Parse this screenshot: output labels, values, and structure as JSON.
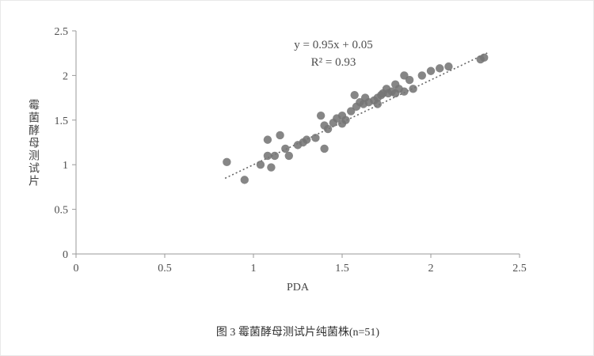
{
  "caption": "图 3 霉菌酵母测试片纯菌株(n=51)",
  "chart_data": {
    "type": "scatter",
    "title": "",
    "xlabel": "PDA",
    "ylabel": "霉菌酵母测试片",
    "xlim": [
      0,
      2.5
    ],
    "ylim": [
      0,
      2.5
    ],
    "grid": false,
    "legend": "none",
    "x_ticks": {
      "values": [
        0,
        0.5,
        1,
        1.5,
        2,
        2.5
      ],
      "labels": [
        "0",
        "0.5",
        "1",
        "1.5",
        "2",
        "2.5"
      ]
    },
    "y_ticks": {
      "values": [
        0,
        0.5,
        1,
        1.5,
        2,
        2.5
      ],
      "labels": [
        "0",
        "0.5",
        "1",
        "1.5",
        "2",
        "2.5"
      ]
    },
    "equation": "y = 0.95x + 0.05",
    "r_squared": "R² = 0.93",
    "n": 51,
    "point_color": "#757575",
    "line_color": "#666666",
    "trendline": {
      "slope": 0.95,
      "intercept": 0.05,
      "x_start": 0.84,
      "x_end": 2.33,
      "style": "dotted"
    },
    "points": [
      [
        0.85,
        1.03
      ],
      [
        0.95,
        0.83
      ],
      [
        1.04,
        1.0
      ],
      [
        1.08,
        1.1
      ],
      [
        1.08,
        1.28
      ],
      [
        1.1,
        0.97
      ],
      [
        1.12,
        1.1
      ],
      [
        1.15,
        1.33
      ],
      [
        1.18,
        1.18
      ],
      [
        1.2,
        1.1
      ],
      [
        1.25,
        1.22
      ],
      [
        1.28,
        1.25
      ],
      [
        1.3,
        1.28
      ],
      [
        1.35,
        1.3
      ],
      [
        1.38,
        1.55
      ],
      [
        1.4,
        1.44
      ],
      [
        1.4,
        1.18
      ],
      [
        1.42,
        1.4
      ],
      [
        1.45,
        1.47
      ],
      [
        1.47,
        1.52
      ],
      [
        1.5,
        1.46
      ],
      [
        1.5,
        1.55
      ],
      [
        1.52,
        1.5
      ],
      [
        1.55,
        1.6
      ],
      [
        1.57,
        1.78
      ],
      [
        1.58,
        1.65
      ],
      [
        1.6,
        1.7
      ],
      [
        1.62,
        1.68
      ],
      [
        1.63,
        1.75
      ],
      [
        1.65,
        1.7
      ],
      [
        1.68,
        1.72
      ],
      [
        1.7,
        1.75
      ],
      [
        1.7,
        1.68
      ],
      [
        1.72,
        1.78
      ],
      [
        1.73,
        1.8
      ],
      [
        1.75,
        1.85
      ],
      [
        1.76,
        1.8
      ],
      [
        1.78,
        1.82
      ],
      [
        1.8,
        1.8
      ],
      [
        1.8,
        1.9
      ],
      [
        1.82,
        1.85
      ],
      [
        1.85,
        2.0
      ],
      [
        1.85,
        1.82
      ],
      [
        1.88,
        1.95
      ],
      [
        1.9,
        1.85
      ],
      [
        1.95,
        2.0
      ],
      [
        2.0,
        2.05
      ],
      [
        2.05,
        2.08
      ],
      [
        2.1,
        2.1
      ],
      [
        2.28,
        2.18
      ],
      [
        2.3,
        2.2
      ]
    ]
  }
}
